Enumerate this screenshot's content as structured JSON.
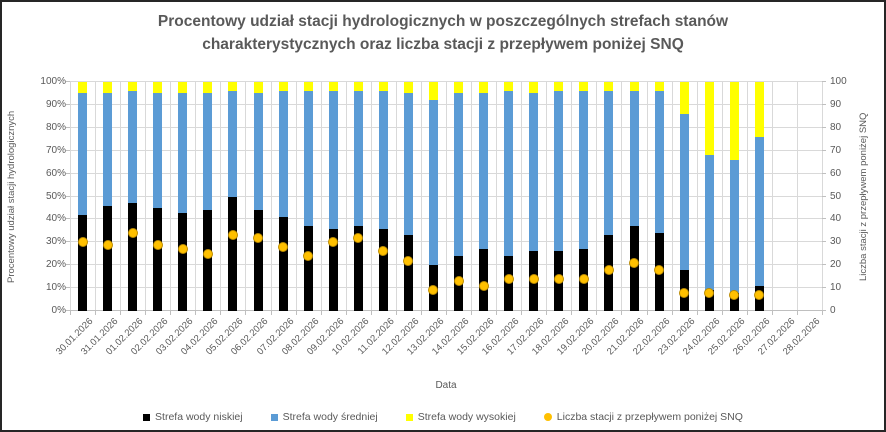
{
  "colors": {
    "text": "#595959",
    "grid": "#D9D9D9",
    "axis": "#BFBFBF",
    "series_low": "#000000",
    "series_mid": "#5B9BD5",
    "series_high": "#FFFF00",
    "series_snq": "#FFC000",
    "background": "#FFFFFF"
  },
  "chart_data": {
    "type": "bar",
    "subtype": "stacked-100-percent-with-scatter-overlay",
    "title": "Procentowy udział stacji hydrologicznych w poszczególnych strefach stanów charakterystycznych oraz liczba stacji z przepływem poniżej SNQ",
    "xlabel": "Data",
    "ylabel_left": "Procentowy udział stacji hydrologicznych",
    "ylabel_right": "Liczba stacji z przepływem poniżej SNQ",
    "ylim_left": [
      0,
      100
    ],
    "ylim_right": [
      0,
      100
    ],
    "y_tick_step": 10,
    "y_left_tick_labels": [
      "0%",
      "10%",
      "20%",
      "30%",
      "40%",
      "50%",
      "60%",
      "70%",
      "80%",
      "90%",
      "100%"
    ],
    "y_right_tick_labels": [
      "0",
      "10",
      "20",
      "30",
      "40",
      "50",
      "60",
      "70",
      "80",
      "90",
      "100"
    ],
    "grid": true,
    "legend_position": "bottom",
    "categories": [
      "30.01.2026",
      "31.01.2026",
      "01.02.2026",
      "02.02.2026",
      "03.02.2026",
      "04.02.2026",
      "05.02.2026",
      "06.02.2026",
      "07.02.2026",
      "08.02.2026",
      "09.02.2026",
      "10.02.2026",
      "11.02.2026",
      "12.02.2026",
      "13.02.2026",
      "14.02.2026",
      "15.02.2026",
      "16.02.2026",
      "17.02.2026",
      "18.02.2026",
      "19.02.2026",
      "20.02.2026",
      "21.02.2026",
      "22.02.2026",
      "23.02.2026",
      "24.02.2026",
      "25.02.2026",
      "26.02.2026",
      "27.02.2026",
      "28.02.2026"
    ],
    "series": [
      {
        "key": "niskiej",
        "name": "Strefa wody niskiej",
        "type": "bar",
        "axis": "left",
        "color": "#000000",
        "marker": "square",
        "values": [
          42,
          46,
          47,
          45,
          43,
          44,
          50,
          44,
          41,
          37,
          36,
          37,
          36,
          33,
          20,
          24,
          27,
          24,
          26,
          26,
          27,
          33,
          37,
          34,
          18,
          9,
          8,
          11,
          null,
          null
        ]
      },
      {
        "key": "sredniej",
        "name": "Strefa wody średniej",
        "type": "bar",
        "axis": "left",
        "color": "#5B9BD5",
        "marker": "square",
        "values": [
          53,
          49,
          49,
          50,
          52,
          51,
          46,
          51,
          55,
          59,
          60,
          59,
          60,
          62,
          72,
          71,
          68,
          72,
          69,
          70,
          69,
          63,
          59,
          62,
          68,
          59,
          58,
          65,
          null,
          null
        ]
      },
      {
        "key": "wysokiej",
        "name": "Strefa wody wysokiej",
        "type": "bar",
        "axis": "left",
        "color": "#FFFF00",
        "marker": "square",
        "values": [
          5,
          5,
          4,
          5,
          5,
          5,
          4,
          5,
          4,
          4,
          4,
          4,
          4,
          5,
          8,
          5,
          5,
          4,
          5,
          4,
          4,
          4,
          4,
          4,
          14,
          32,
          34,
          24,
          null,
          null
        ]
      },
      {
        "key": "snq",
        "name": "Liczba stacji z przepływem poniżej SNQ",
        "type": "scatter",
        "axis": "right",
        "color": "#FFC000",
        "marker": "circle",
        "values": [
          30,
          29,
          34,
          29,
          27,
          25,
          33,
          32,
          28,
          24,
          30,
          32,
          26,
          22,
          9,
          13,
          11,
          14,
          14,
          14,
          14,
          18,
          21,
          18,
          8,
          8,
          7,
          7,
          null,
          null
        ]
      }
    ]
  }
}
